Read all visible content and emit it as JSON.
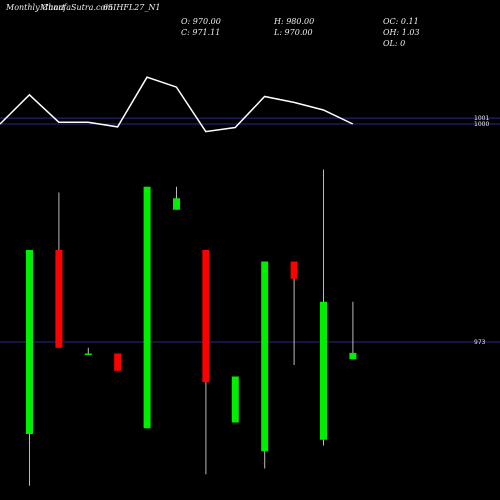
{
  "header": {
    "title_left": "Monthly Chart",
    "site": "MunafaSutra.com",
    "symbol": "65IHFL27_N1",
    "open_text": "O: 970.00",
    "close_text": "C: 971.11",
    "high_text": "H: 980.00",
    "low_text": "L: 970.00",
    "oc_text": "OC: 0.11",
    "oh_text": "OH: 1.03",
    "ol_text": "OL: 0"
  },
  "colors": {
    "background": "#000000",
    "up": "#00ee00",
    "down": "#ff0000",
    "line": "#ffffff",
    "grid": "#2a2a8a"
  },
  "chart_data": {
    "type": "candlestick",
    "y_axis_ticks": [
      "1001",
      "1000",
      "973"
    ],
    "candles": [
      {
        "open": 957,
        "high": 989,
        "low": 948,
        "close": 989
      },
      {
        "open": 989,
        "high": 999,
        "low": 972,
        "close": 972
      },
      {
        "open": 971,
        "high": 972,
        "low": 971,
        "close": 971
      },
      {
        "open": 971,
        "high": 971,
        "low": 968,
        "close": 968
      },
      {
        "open": 958,
        "high": 1000,
        "low": 958,
        "close": 1000
      },
      {
        "open": 996,
        "high": 1000,
        "low": 996,
        "close": 998
      },
      {
        "open": 989,
        "high": 989,
        "low": 950,
        "close": 966
      },
      {
        "open": 959,
        "high": 967,
        "low": 959,
        "close": 967
      },
      {
        "open": 954,
        "high": 987,
        "low": 951,
        "close": 987
      },
      {
        "open": 987,
        "high": 987,
        "low": 969,
        "close": 984
      },
      {
        "open": 956,
        "high": 1003,
        "low": 955,
        "close": 980
      },
      {
        "open": 970,
        "high": 980,
        "low": 970,
        "close": 971.11
      }
    ],
    "line_values": [
      1000,
      1005,
      1000.3,
      1000.3,
      999.5,
      1008,
      1006.3,
      998.7,
      999.4,
      1004.7,
      1003.7,
      1002.4,
      1000
    ]
  }
}
